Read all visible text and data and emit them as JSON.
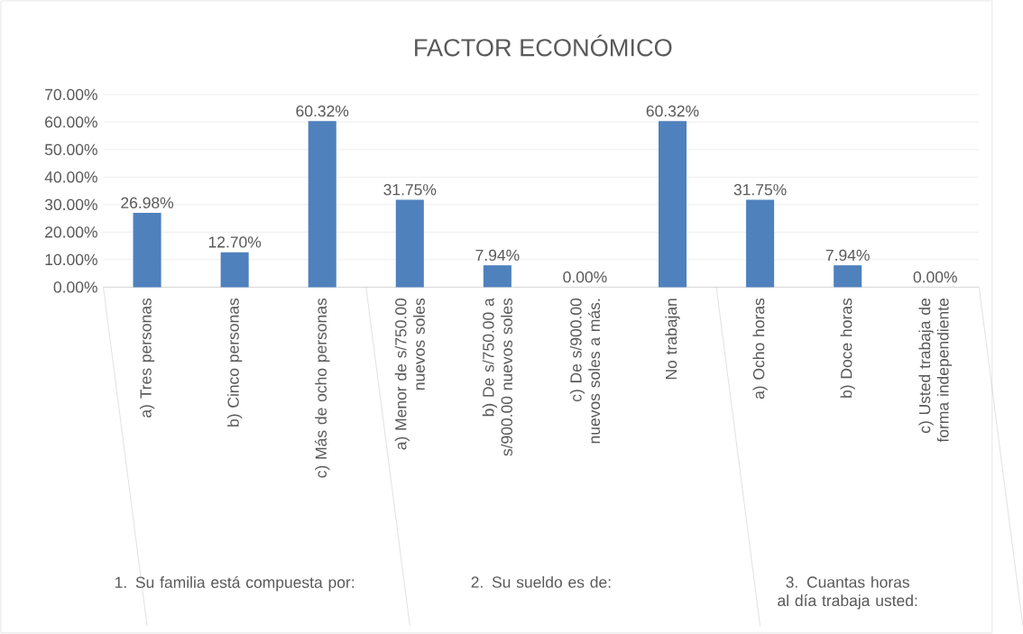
{
  "chart_data": {
    "type": "bar",
    "title": "FACTOR ECONÓMICO",
    "categories": [
      "a) Tres personas",
      "b) Cinco personas",
      "c) Más de ocho personas",
      "a) Menor de s/750.00 nuevos soles",
      "b) De s/750.00 a s/900.00 nuevos soles",
      "c) De s/900.00 nuevos soles a más.",
      "No trabajan",
      "a) Ocho horas",
      "b) Doce horas",
      "c) Usted trabaja de forma independiente"
    ],
    "values": [
      26.98,
      12.7,
      60.32,
      31.75,
      7.94,
      0,
      60.32,
      31.75,
      7.94,
      0
    ],
    "value_labels": [
      "26.98%",
      "12.70%",
      "60.32%",
      "31.75%",
      "7.94%",
      "0.00%",
      "60.32%",
      "31.75%",
      "7.94%",
      "0.00%"
    ],
    "color": "#4f81bd",
    "ylim": [
      0,
      70
    ],
    "yticks": [
      {
        "value": 0,
        "label": "0.00%"
      },
      {
        "value": 10,
        "label": "10.00%"
      },
      {
        "value": 20,
        "label": "20.00%"
      },
      {
        "value": 30,
        "label": "30.00%"
      },
      {
        "value": 40,
        "label": "40.00%"
      },
      {
        "value": 50,
        "label": "50.00%"
      },
      {
        "value": 60,
        "label": "60.00%"
      },
      {
        "value": 70,
        "label": "70.00%"
      }
    ],
    "grid": "y",
    "annotations": [
      "1. Su familia está compuesta por:",
      "2. Su sueldo es de:",
      "3. Cuantas horas al día trabaja usted:"
    ]
  }
}
